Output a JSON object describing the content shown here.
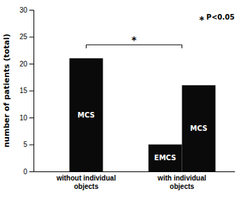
{
  "chart_data": {
    "type": "bar",
    "ylabel": "number of patients (total)",
    "categories": [
      "without individual\nobjects",
      "with individual\nobjects"
    ],
    "series": [
      {
        "name": "EMCS",
        "color": "#0a0a0a",
        "values": [
          null,
          5
        ]
      },
      {
        "name": "MCS",
        "color": "#0a0a0a",
        "values": [
          21,
          16
        ]
      }
    ],
    "ylim": [
      0,
      30
    ],
    "yticks": [
      0,
      5,
      10,
      15,
      20,
      25,
      30
    ],
    "annotations": [
      {
        "text": "*",
        "y": 23.5
      },
      {
        "text": "*"
      },
      {
        "text": "P<0.05"
      }
    ]
  }
}
